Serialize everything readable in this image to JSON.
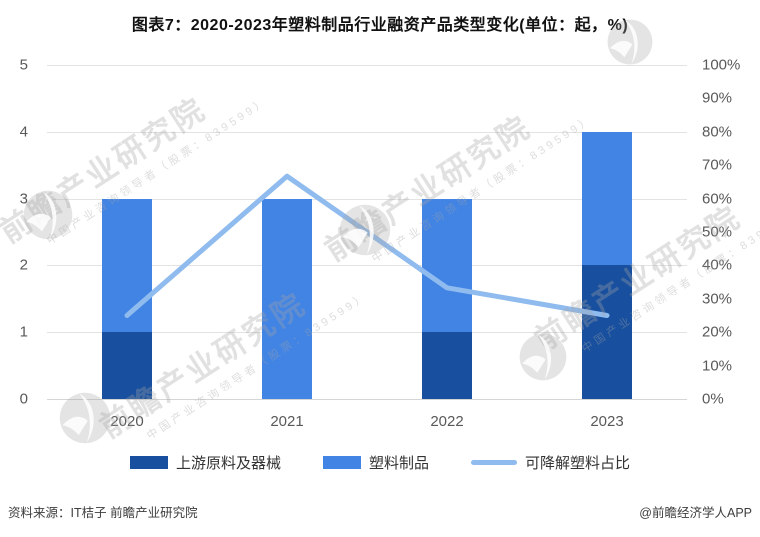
{
  "title": "图表7：2020-2023年塑料制品行业融资产品类型变化(单位：起，%)",
  "footer": {
    "source": "资料来源：IT桔子 前瞻产业研究院",
    "credit": "@前瞻经济学人APP"
  },
  "watermark": {
    "big": "前瞻产业研究院",
    "small": "中国产业咨询领导者（股票：839599）"
  },
  "colors": {
    "dark_blue": "#18509F",
    "medium_blue": "#4284E4",
    "light_blue_line": "#8FBBEE",
    "grid": "#e3e3e3",
    "axis_text": "#595959"
  },
  "chart_data": {
    "type": "bar",
    "subtype": "stacked-bars-with-line",
    "categories": [
      "2020",
      "2021",
      "2022",
      "2023"
    ],
    "series": [
      {
        "name": "上游原料及器械",
        "type": "bar",
        "axis": "left",
        "color": "#18509F",
        "values": [
          1,
          0,
          1,
          2
        ]
      },
      {
        "name": "塑料制品",
        "type": "bar",
        "axis": "left",
        "color": "#4284E4",
        "values": [
          2,
          3,
          2,
          2
        ]
      },
      {
        "name": "可降解塑料占比",
        "type": "line",
        "axis": "right",
        "color": "#8FBBEE",
        "values_pct": [
          25,
          66.7,
          33.3,
          25
        ]
      }
    ],
    "left_axis": {
      "ticks": [
        0,
        1,
        2,
        3,
        4,
        5
      ],
      "range": [
        0,
        5
      ]
    },
    "right_axis": {
      "ticks": [
        "0%",
        "10%",
        "20%",
        "30%",
        "40%",
        "50%",
        "60%",
        "70%",
        "80%",
        "90%",
        "100%"
      ],
      "range": [
        0,
        100
      ]
    },
    "grid": true,
    "legend_position": "bottom",
    "title": "图表7：2020-2023年塑料制品行业融资产品类型变化(单位：起，%)"
  }
}
